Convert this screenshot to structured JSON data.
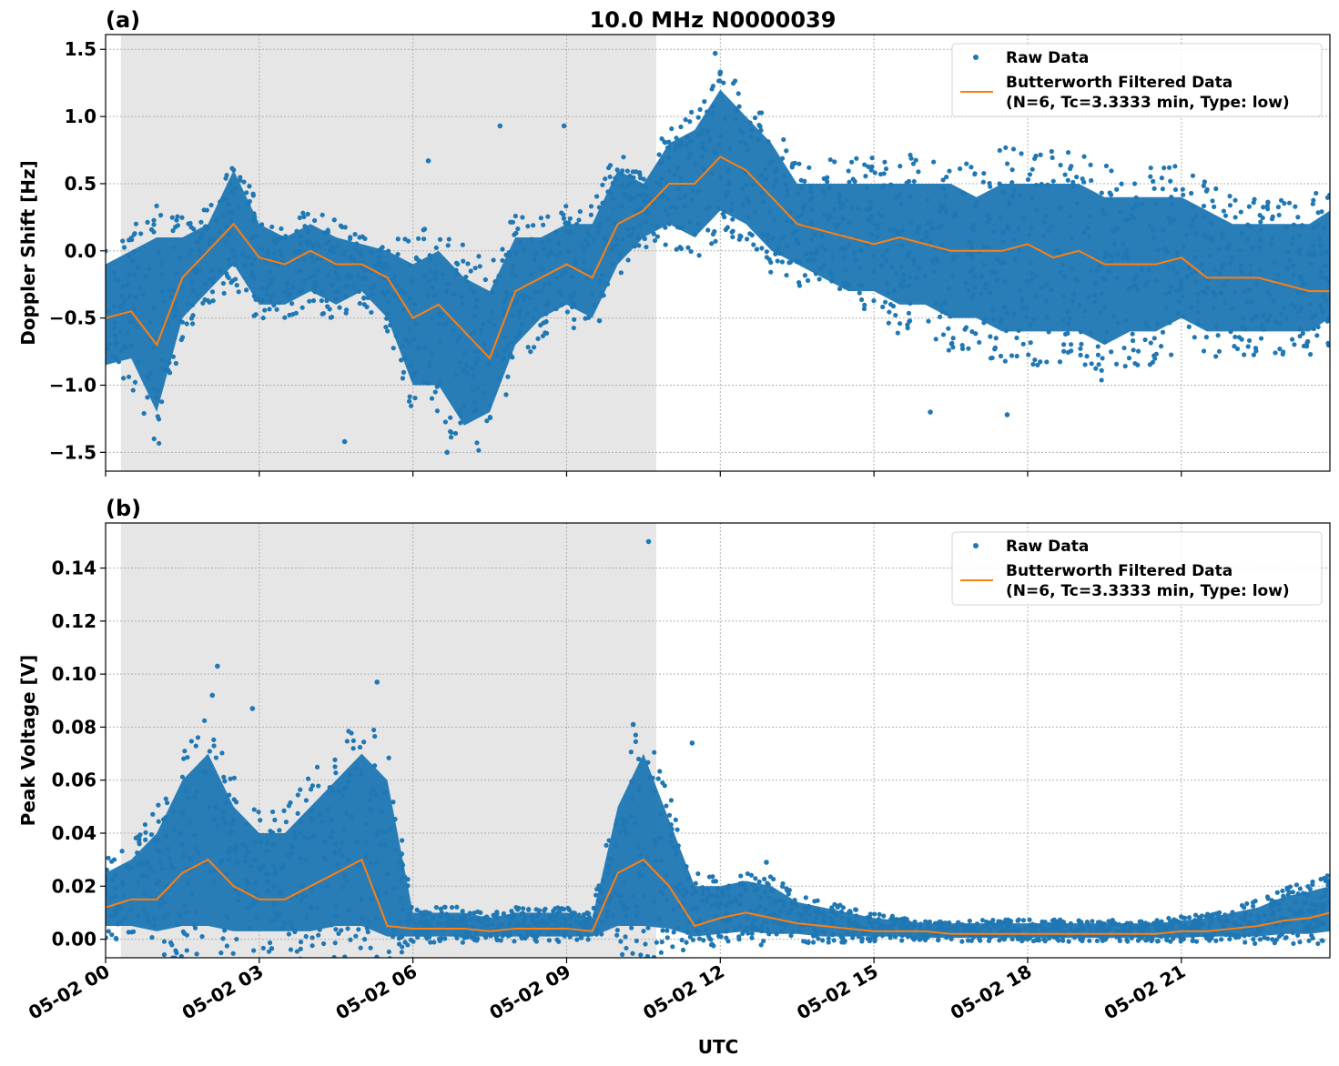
{
  "title": "10.0 MHz N0000039",
  "xlabel": "UTC",
  "x_tick_labels": [
    "05-02 00",
    "05-02 03",
    "05-02 06",
    "05-02 09",
    "05-02 12",
    "05-02 15",
    "05-02 18",
    "05-02 21"
  ],
  "x_ticks": [
    "05-02 00:00",
    "05-02 03:00",
    "05-02 06:00",
    "05-02 09:00",
    "05-02 12:00",
    "05-02 15:00",
    "05-02 18:00",
    "05-02 21:00"
  ],
  "xlim": [
    "05-02 00:00",
    "05-02 23:54"
  ],
  "colors": {
    "raw": "#1f77b4",
    "filtered": "#ff7f0e",
    "shade": "#e6e6e6",
    "grid": "#b0b0b0"
  },
  "chart_data": [
    {
      "type": "scatter",
      "panel_label": "(a)",
      "ylabel": "Doppler Shift [Hz]",
      "ylim": [
        -1.64,
        1.61
      ],
      "y_ticks": [
        1.5,
        1.0,
        0.5,
        0.0,
        -0.5,
        -1.0,
        -1.5
      ],
      "y_tick_labels": [
        "1.5",
        "1.0",
        "0.5",
        "0.0",
        "−0.5",
        "−1.0",
        "−1.5"
      ],
      "grid": true,
      "legend": {
        "placement": "top-right",
        "entries": [
          "Raw Data",
          "Butterworth Filtered Data",
          "(N=6, Tc=3.3333 min, Type: low)"
        ]
      },
      "shaded_region": [
        "05-02 00:18",
        "05-02 10:45"
      ],
      "x": [
        "00:00",
        "00:30",
        "01:00",
        "01:30",
        "02:00",
        "02:30",
        "03:00",
        "03:30",
        "04:00",
        "04:30",
        "05:00",
        "05:30",
        "06:00",
        "06:30",
        "07:00",
        "07:30",
        "08:00",
        "08:30",
        "09:00",
        "09:30",
        "10:00",
        "10:30",
        "11:00",
        "11:30",
        "12:00",
        "12:30",
        "13:00",
        "13:30",
        "14:00",
        "14:30",
        "15:00",
        "15:30",
        "16:00",
        "16:30",
        "17:00",
        "17:30",
        "18:00",
        "18:30",
        "19:00",
        "19:30",
        "20:00",
        "20:30",
        "21:00",
        "21:30",
        "22:00",
        "22:30",
        "23:00",
        "23:30",
        "23:54"
      ],
      "series": [
        {
          "name": "Butterworth Filtered Data",
          "kind": "line",
          "values": [
            -0.5,
            -0.45,
            -0.7,
            -0.2,
            0.0,
            0.2,
            -0.05,
            -0.1,
            0.0,
            -0.1,
            -0.1,
            -0.2,
            -0.5,
            -0.4,
            -0.6,
            -0.8,
            -0.3,
            -0.2,
            -0.1,
            -0.2,
            0.2,
            0.3,
            0.5,
            0.5,
            0.7,
            0.6,
            0.4,
            0.2,
            0.15,
            0.1,
            0.05,
            0.1,
            0.05,
            0.0,
            0.0,
            0.0,
            0.05,
            -0.05,
            0.0,
            -0.1,
            -0.1,
            -0.1,
            -0.05,
            -0.2,
            -0.2,
            -0.2,
            -0.25,
            -0.3,
            -0.3
          ]
        },
        {
          "name": "Raw Data",
          "kind": "scatter-envelope",
          "low": [
            -0.85,
            -0.8,
            -1.2,
            -0.5,
            -0.3,
            -0.1,
            -0.4,
            -0.4,
            -0.3,
            -0.4,
            -0.3,
            -0.5,
            -1.0,
            -1.0,
            -1.3,
            -1.2,
            -0.7,
            -0.5,
            -0.4,
            -0.5,
            -0.1,
            0.1,
            0.2,
            0.1,
            0.3,
            0.2,
            0.0,
            -0.1,
            -0.2,
            -0.3,
            -0.3,
            -0.4,
            -0.4,
            -0.5,
            -0.5,
            -0.6,
            -0.6,
            -0.6,
            -0.6,
            -0.7,
            -0.6,
            -0.6,
            -0.5,
            -0.6,
            -0.6,
            -0.6,
            -0.6,
            -0.6,
            -0.5
          ],
          "high": [
            -0.1,
            0.0,
            0.1,
            0.1,
            0.2,
            0.6,
            0.2,
            0.1,
            0.2,
            0.1,
            0.05,
            0.0,
            -0.1,
            0.0,
            -0.2,
            -0.3,
            0.1,
            0.1,
            0.2,
            0.2,
            0.6,
            0.5,
            0.8,
            0.9,
            1.2,
            1.0,
            0.8,
            0.5,
            0.5,
            0.5,
            0.5,
            0.5,
            0.5,
            0.5,
            0.4,
            0.5,
            0.5,
            0.5,
            0.5,
            0.4,
            0.4,
            0.4,
            0.4,
            0.3,
            0.2,
            0.2,
            0.2,
            0.2,
            0.3
          ],
          "outliers": [
            [
              "11:54",
              1.47
            ],
            [
              "04:40",
              -1.42
            ],
            [
              "07:42",
              0.93
            ],
            [
              "08:57",
              0.93
            ],
            [
              "06:18",
              0.67
            ],
            [
              "16:06",
              -1.2
            ],
            [
              "17:36",
              -1.22
            ],
            [
              "12:00",
              1.33
            ],
            [
              "06:40",
              -1.5
            ]
          ]
        }
      ]
    },
    {
      "type": "scatter",
      "panel_label": "(b)",
      "ylabel": "Peak Voltage [V]",
      "ylim": [
        -0.007,
        0.157
      ],
      "y_ticks": [
        0.14,
        0.12,
        0.1,
        0.08,
        0.06,
        0.04,
        0.02,
        0.0
      ],
      "y_tick_labels": [
        "0.14",
        "0.12",
        "0.10",
        "0.08",
        "0.06",
        "0.04",
        "0.02",
        "0.00"
      ],
      "grid": true,
      "legend": {
        "placement": "top-right",
        "entries": [
          "Raw Data",
          "Butterworth Filtered Data",
          "(N=6, Tc=3.3333 min, Type: low)"
        ]
      },
      "shaded_region": [
        "05-02 00:18",
        "05-02 10:45"
      ],
      "x": [
        "00:00",
        "00:30",
        "01:00",
        "01:30",
        "02:00",
        "02:30",
        "03:00",
        "03:30",
        "04:00",
        "04:30",
        "05:00",
        "05:30",
        "06:00",
        "06:30",
        "07:00",
        "07:30",
        "08:00",
        "08:30",
        "09:00",
        "09:30",
        "10:00",
        "10:30",
        "11:00",
        "11:30",
        "12:00",
        "12:30",
        "13:00",
        "13:30",
        "14:00",
        "14:30",
        "15:00",
        "15:30",
        "16:00",
        "16:30",
        "17:00",
        "17:30",
        "18:00",
        "18:30",
        "19:00",
        "19:30",
        "20:00",
        "20:30",
        "21:00",
        "21:30",
        "22:00",
        "22:30",
        "23:00",
        "23:30",
        "23:54"
      ],
      "series": [
        {
          "name": "Butterworth Filtered Data",
          "kind": "line",
          "values": [
            0.012,
            0.015,
            0.015,
            0.025,
            0.03,
            0.02,
            0.015,
            0.015,
            0.02,
            0.025,
            0.03,
            0.005,
            0.004,
            0.004,
            0.004,
            0.003,
            0.004,
            0.004,
            0.004,
            0.003,
            0.025,
            0.03,
            0.02,
            0.005,
            0.008,
            0.01,
            0.008,
            0.006,
            0.005,
            0.004,
            0.003,
            0.003,
            0.003,
            0.002,
            0.002,
            0.002,
            0.002,
            0.002,
            0.002,
            0.002,
            0.002,
            0.002,
            0.003,
            0.003,
            0.004,
            0.005,
            0.007,
            0.008,
            0.01
          ]
        },
        {
          "name": "Raw Data",
          "kind": "scatter-envelope",
          "low": [
            0.005,
            0.005,
            0.003,
            0.005,
            0.005,
            0.003,
            0.003,
            0.003,
            0.003,
            0.005,
            0.005,
            0.001,
            0.001,
            0.001,
            0.001,
            0.001,
            0.001,
            0.001,
            0.001,
            0.001,
            0.005,
            0.005,
            0.004,
            0.001,
            0.002,
            0.003,
            0.002,
            0.002,
            0.001,
            0.001,
            0.001,
            0.001,
            0.0005,
            0.0005,
            0.0005,
            0.0005,
            0.0005,
            0.0005,
            0.0005,
            0.0005,
            0.0005,
            0.0005,
            0.0005,
            0.001,
            0.001,
            0.001,
            0.002,
            0.002,
            0.003
          ],
          "high": [
            0.025,
            0.03,
            0.04,
            0.06,
            0.07,
            0.05,
            0.04,
            0.04,
            0.05,
            0.06,
            0.07,
            0.06,
            0.01,
            0.01,
            0.01,
            0.008,
            0.01,
            0.01,
            0.01,
            0.008,
            0.05,
            0.07,
            0.045,
            0.02,
            0.02,
            0.022,
            0.02,
            0.014,
            0.012,
            0.01,
            0.008,
            0.007,
            0.006,
            0.006,
            0.006,
            0.006,
            0.006,
            0.006,
            0.006,
            0.006,
            0.006,
            0.006,
            0.007,
            0.008,
            0.01,
            0.012,
            0.016,
            0.018,
            0.02
          ],
          "outliers": [
            [
              "10:36",
              0.15
            ],
            [
              "02:11",
              0.103
            ],
            [
              "02:52",
              0.087
            ],
            [
              "05:18",
              0.097
            ],
            [
              "10:18",
              0.081
            ],
            [
              "11:27",
              0.074
            ],
            [
              "12:54",
              0.029
            ],
            [
              "02:05",
              0.092
            ]
          ]
        }
      ]
    }
  ]
}
